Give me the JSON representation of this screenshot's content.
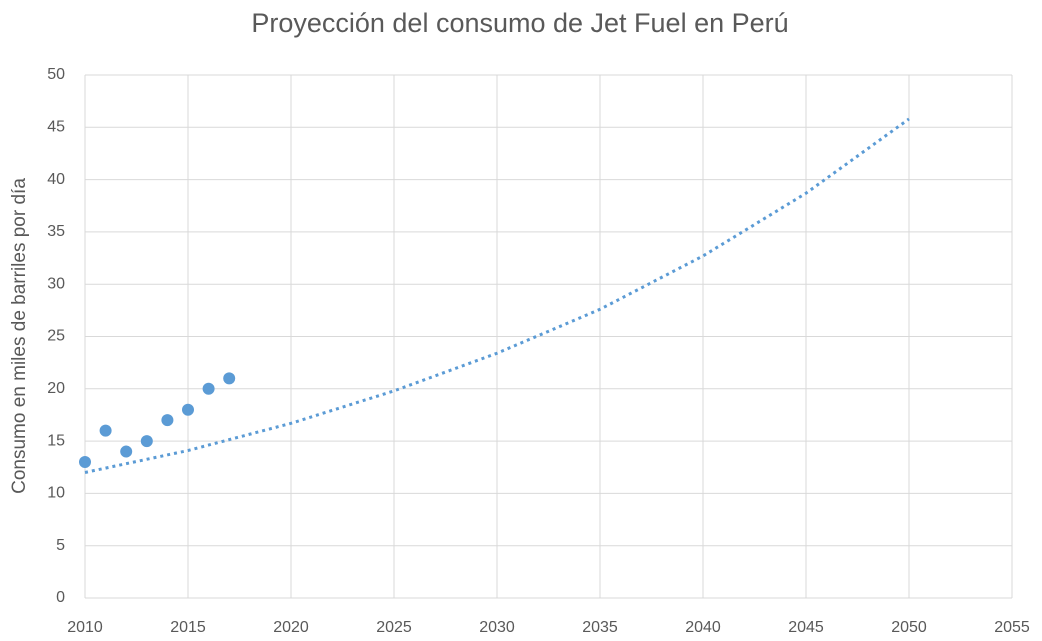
{
  "chart_data": {
    "type": "scatter",
    "title": "Proyección del consumo de Jet Fuel en Perú",
    "y_label": "Consumo en miles de barriles por día",
    "series": [
      {
        "type": "scatter",
        "color": "#5b9bd5",
        "x": [
          2010,
          2011,
          2012,
          2013,
          2014,
          2015,
          2016,
          2017
        ],
        "values": [
          13,
          16,
          14,
          15,
          17,
          18,
          20,
          21
        ]
      },
      {
        "type": "line",
        "line_style": "dotted",
        "color": "#5b9bd5",
        "x": [
          2010,
          2015,
          2020,
          2025,
          2030,
          2035,
          2040,
          2045,
          2050
        ],
        "values": [
          12,
          14.1,
          16.7,
          19.8,
          23.4,
          27.6,
          32.7,
          38.7,
          45.8
        ]
      }
    ],
    "xlim": [
      2010,
      2055
    ],
    "xticks": [
      2010,
      2015,
      2020,
      2025,
      2030,
      2035,
      2040,
      2045,
      2050,
      2055
    ],
    "ylim": [
      0,
      50
    ],
    "yticks": [
      0,
      5,
      10,
      15,
      20,
      25,
      30,
      35,
      40,
      45,
      50
    ],
    "grid": true
  }
}
